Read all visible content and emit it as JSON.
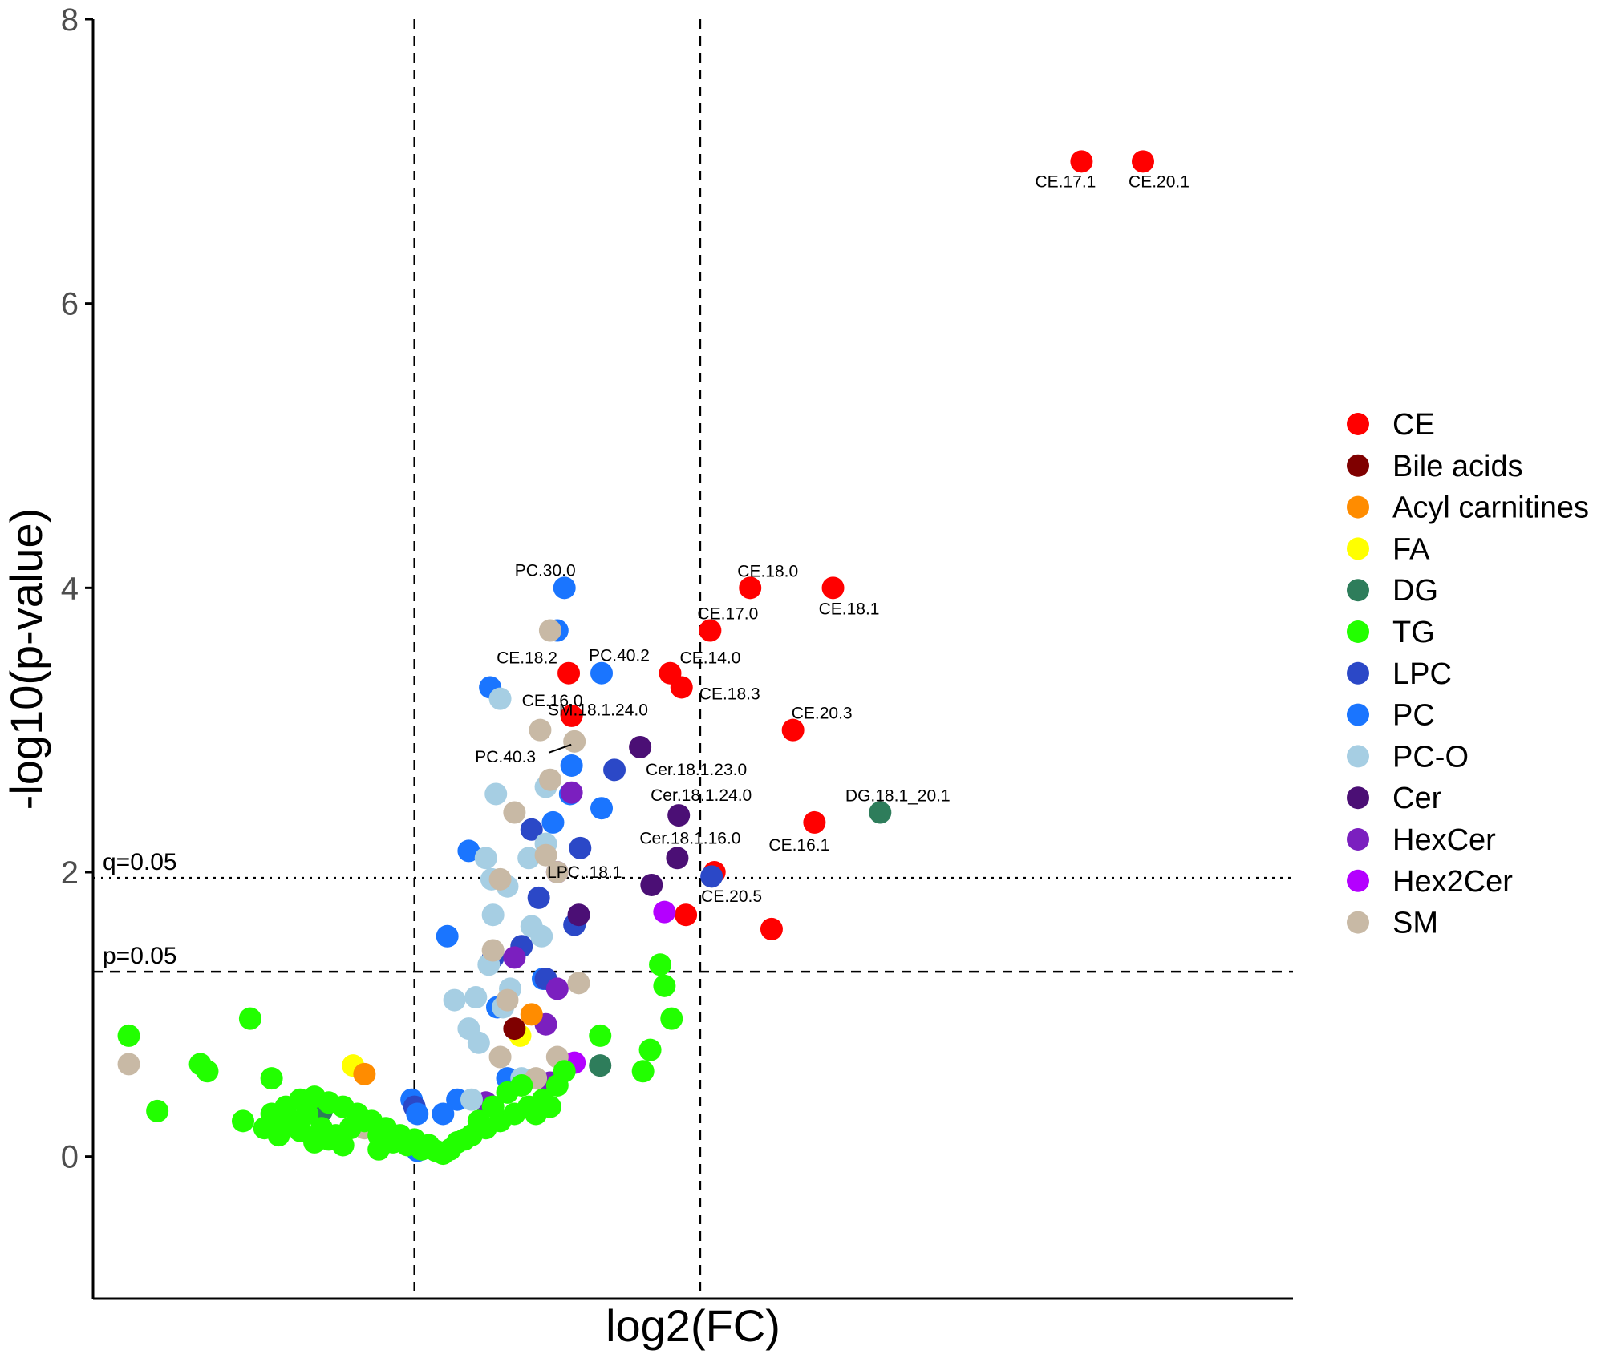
{
  "chart_data": {
    "type": "scatter",
    "xlabel": "log2(FC)",
    "ylabel": "-log10(p-value)",
    "ylim": [
      -1,
      8
    ],
    "y_ticks": [
      0,
      2,
      4,
      6,
      8
    ],
    "x_ticks_shown": false,
    "grid": false,
    "legend_position": "right",
    "vlines": [
      -1,
      1
    ],
    "hlines": [
      {
        "value": 1.3,
        "style": "dashed",
        "label": "p=0.05"
      },
      {
        "value": 1.96,
        "style": "dotted",
        "label": "q=0.05"
      }
    ],
    "categories": [
      {
        "name": "CE",
        "color": "#ff0000"
      },
      {
        "name": "Bile acids",
        "color": "#7f0000"
      },
      {
        "name": "Acyl carnitines",
        "color": "#ff8c00"
      },
      {
        "name": "FA",
        "color": "#ffff00"
      },
      {
        "name": "DG",
        "color": "#2e7d5b"
      },
      {
        "name": "TG",
        "color": "#22ff00"
      },
      {
        "name": "LPC",
        "color": "#2b48c7"
      },
      {
        "name": "PC",
        "color": "#1a75ff"
      },
      {
        "name": "PC-O",
        "color": "#a6cee3"
      },
      {
        "name": "Cer",
        "color": "#4b0f75"
      },
      {
        "name": "HexCer",
        "color": "#7b1fbf"
      },
      {
        "name": "Hex2Cer",
        "color": "#b400ff"
      },
      {
        "name": "SM",
        "color": "#c8b9a5"
      }
    ],
    "points": [
      {
        "x": 3.67,
        "y": 7.0,
        "c": 0,
        "label": "CE.17.1"
      },
      {
        "x": 4.1,
        "y": 7.0,
        "c": 0,
        "label": "CE.20.1"
      },
      {
        "x": 1.35,
        "y": 4.0,
        "c": 0,
        "label": "CE.18.0"
      },
      {
        "x": 1.93,
        "y": 4.0,
        "c": 0,
        "label": "CE.18.1"
      },
      {
        "x": 1.07,
        "y": 3.7,
        "c": 0,
        "label": "CE.17.0"
      },
      {
        "x": 0.08,
        "y": 3.4,
        "c": 0,
        "label": "CE.18.2"
      },
      {
        "x": 0.79,
        "y": 3.4,
        "c": 0,
        "label": "CE.14.0"
      },
      {
        "x": 0.87,
        "y": 3.3,
        "c": 0,
        "label": "CE.18.3"
      },
      {
        "x": 0.1,
        "y": 3.1,
        "c": 0,
        "label": "CE.16.0"
      },
      {
        "x": 1.65,
        "y": 3.0,
        "c": 0,
        "label": "CE.20.3"
      },
      {
        "x": 1.8,
        "y": 2.35,
        "c": 0,
        "label": "CE.16.1"
      },
      {
        "x": 1.1,
        "y": 2.0,
        "c": 0
      },
      {
        "x": 0.9,
        "y": 1.7,
        "c": 0,
        "label": "CE.20.5"
      },
      {
        "x": 1.5,
        "y": 1.6,
        "c": 0
      },
      {
        "x": 2.26,
        "y": 2.42,
        "c": 4,
        "label": "DG.18.1_20.1"
      },
      {
        "x": 0.05,
        "y": 4.0,
        "c": 7,
        "label": "PC.30.0"
      },
      {
        "x": 0.31,
        "y": 3.4,
        "c": 7,
        "label": "PC.40.2"
      },
      {
        "x": 0.0,
        "y": 3.7,
        "c": 7
      },
      {
        "x": -0.47,
        "y": 3.3,
        "c": 7
      },
      {
        "x": 0.1,
        "y": 2.75,
        "c": 7
      },
      {
        "x": 0.31,
        "y": 2.45,
        "c": 7
      },
      {
        "x": -0.62,
        "y": 2.15,
        "c": 7
      },
      {
        "x": -0.77,
        "y": 1.55,
        "c": 7
      },
      {
        "x": -0.03,
        "y": 2.35,
        "c": 7
      },
      {
        "x": 0.09,
        "y": 2.55,
        "c": 7
      },
      {
        "x": -0.1,
        "y": 1.25,
        "c": 7
      },
      {
        "x": -0.42,
        "y": 1.05,
        "c": 7
      },
      {
        "x": -0.35,
        "y": 0.55,
        "c": 7
      },
      {
        "x": -0.7,
        "y": 0.4,
        "c": 7
      },
      {
        "x": -0.8,
        "y": 0.3,
        "c": 7
      },
      {
        "x": -1.02,
        "y": 0.4,
        "c": 7
      },
      {
        "x": -1.0,
        "y": 0.35,
        "c": 6
      },
      {
        "x": -0.98,
        "y": 0.3,
        "c": 7
      },
      {
        "x": -0.98,
        "y": 0.04,
        "c": 7
      },
      {
        "x": -1.0,
        "y": 0.07,
        "c": 7
      },
      {
        "x": -0.95,
        "y": 0.05,
        "c": 7
      },
      {
        "x": 0.4,
        "y": 2.72,
        "c": 6
      },
      {
        "x": 0.16,
        "y": 2.17,
        "c": 6
      },
      {
        "x": 1.08,
        "y": 1.97,
        "c": 6
      },
      {
        "x": -0.18,
        "y": 2.3,
        "c": 6
      },
      {
        "x": -0.13,
        "y": 1.82,
        "c": 6
      },
      {
        "x": 0.12,
        "y": 1.63,
        "c": 6
      },
      {
        "x": -0.08,
        "y": 1.25,
        "c": 6
      },
      {
        "x": -0.45,
        "y": 1.4,
        "c": 6
      },
      {
        "x": -0.25,
        "y": 1.48,
        "c": 6
      },
      {
        "x": 0.58,
        "y": 2.88,
        "c": 9,
        "label": "Cer.18.1.23.0"
      },
      {
        "x": 0.85,
        "y": 2.4,
        "c": 9,
        "label": "Cer.18.1.24.0"
      },
      {
        "x": 0.84,
        "y": 2.1,
        "c": 9,
        "label": "Cer.18.1.16.0"
      },
      {
        "x": 0.66,
        "y": 1.91,
        "c": 9
      },
      {
        "x": 0.15,
        "y": 1.7,
        "c": 9
      },
      {
        "x": 0.0,
        "y": 2.0,
        "c": 10,
        "label": "LPC..18.1"
      },
      {
        "x": 0.1,
        "y": 2.56,
        "c": 10
      },
      {
        "x": -0.3,
        "y": 1.4,
        "c": 10
      },
      {
        "x": 0.0,
        "y": 1.18,
        "c": 10
      },
      {
        "x": -0.08,
        "y": 0.93,
        "c": 10
      },
      {
        "x": -0.5,
        "y": 0.38,
        "c": 10
      },
      {
        "x": -0.05,
        "y": 0.52,
        "c": 10
      },
      {
        "x": 0.75,
        "y": 1.72,
        "c": 11
      },
      {
        "x": 0.12,
        "y": 0.66,
        "c": 11
      },
      {
        "x": 0.3,
        "y": 0.64,
        "c": 4
      },
      {
        "x": -1.65,
        "y": 0.32,
        "c": 4
      },
      {
        "x": -1.43,
        "y": 0.64,
        "c": 3
      },
      {
        "x": -0.26,
        "y": 0.85,
        "c": 3
      },
      {
        "x": -1.35,
        "y": 0.58,
        "c": 2
      },
      {
        "x": -0.18,
        "y": 1.0,
        "c": 2
      },
      {
        "x": -0.3,
        "y": 0.9,
        "c": 1
      },
      {
        "x": -0.08,
        "y": 2.6,
        "c": 8
      },
      {
        "x": -0.4,
        "y": 3.22,
        "c": 8
      },
      {
        "x": -0.08,
        "y": 2.2,
        "c": 8
      },
      {
        "x": -0.11,
        "y": 1.55,
        "c": 8
      },
      {
        "x": -0.46,
        "y": 1.95,
        "c": 8
      },
      {
        "x": -0.45,
        "y": 1.7,
        "c": 8
      },
      {
        "x": -0.48,
        "y": 1.35,
        "c": 8
      },
      {
        "x": -0.57,
        "y": 1.12,
        "c": 8
      },
      {
        "x": -0.62,
        "y": 0.9,
        "c": 8
      },
      {
        "x": -0.55,
        "y": 0.8,
        "c": 8
      },
      {
        "x": -0.33,
        "y": 1.18,
        "c": 8
      },
      {
        "x": -0.35,
        "y": 1.9,
        "c": 8
      },
      {
        "x": -0.2,
        "y": 2.1,
        "c": 8
      },
      {
        "x": -0.43,
        "y": 2.55,
        "c": 8
      },
      {
        "x": -0.5,
        "y": 2.1,
        "c": 8
      },
      {
        "x": -0.18,
        "y": 1.62,
        "c": 8
      },
      {
        "x": -0.25,
        "y": 0.55,
        "c": 8
      },
      {
        "x": -0.6,
        "y": 0.4,
        "c": 8
      },
      {
        "x": -0.72,
        "y": 1.1,
        "c": 8
      },
      {
        "x": -0.38,
        "y": 1.05,
        "c": 8
      },
      {
        "x": 0.0,
        "y": 2.0,
        "c": 12
      },
      {
        "x": -0.05,
        "y": 3.7,
        "c": 12
      },
      {
        "x": -0.12,
        "y": 3.0,
        "c": 12,
        "label": "SM.18.1.24.0"
      },
      {
        "x": 0.12,
        "y": 2.92,
        "c": 12,
        "label": "PC.40.3"
      },
      {
        "x": -0.05,
        "y": 2.65,
        "c": 12
      },
      {
        "x": -0.3,
        "y": 2.42,
        "c": 12
      },
      {
        "x": -0.08,
        "y": 2.12,
        "c": 12
      },
      {
        "x": -0.4,
        "y": 1.95,
        "c": 12
      },
      {
        "x": -0.45,
        "y": 1.45,
        "c": 12
      },
      {
        "x": -0.35,
        "y": 1.1,
        "c": 12
      },
      {
        "x": 0.15,
        "y": 1.22,
        "c": 12
      },
      {
        "x": -0.4,
        "y": 0.7,
        "c": 12
      },
      {
        "x": -0.15,
        "y": 0.55,
        "c": 12
      },
      {
        "x": 0.0,
        "y": 0.7,
        "c": 12
      },
      {
        "x": -3.0,
        "y": 0.65,
        "c": 12
      },
      {
        "x": -1.35,
        "y": 0.2,
        "c": 12
      },
      {
        "x": -3.0,
        "y": 0.85,
        "c": 5
      },
      {
        "x": -2.15,
        "y": 0.97,
        "c": 5
      },
      {
        "x": -2.5,
        "y": 0.65,
        "c": 5
      },
      {
        "x": -2.45,
        "y": 0.6,
        "c": 5
      },
      {
        "x": -2.8,
        "y": 0.32,
        "c": 5
      },
      {
        "x": -2.2,
        "y": 0.25,
        "c": 5
      },
      {
        "x": -2.0,
        "y": 0.3,
        "c": 5
      },
      {
        "x": -1.9,
        "y": 0.35,
        "c": 5
      },
      {
        "x": -1.8,
        "y": 0.4,
        "c": 5
      },
      {
        "x": -1.7,
        "y": 0.42,
        "c": 5
      },
      {
        "x": -1.6,
        "y": 0.38,
        "c": 5
      },
      {
        "x": -1.5,
        "y": 0.35,
        "c": 5
      },
      {
        "x": -1.4,
        "y": 0.3,
        "c": 5
      },
      {
        "x": -1.3,
        "y": 0.25,
        "c": 5
      },
      {
        "x": -1.2,
        "y": 0.2,
        "c": 5
      },
      {
        "x": -1.1,
        "y": 0.15,
        "c": 5
      },
      {
        "x": -1.0,
        "y": 0.12,
        "c": 5
      },
      {
        "x": -0.9,
        "y": 0.08,
        "c": 5
      },
      {
        "x": -0.85,
        "y": 0.04,
        "c": 5
      },
      {
        "x": -0.8,
        "y": 0.02,
        "c": 5
      },
      {
        "x": -0.75,
        "y": 0.05,
        "c": 5
      },
      {
        "x": -0.7,
        "y": 0.1,
        "c": 5
      },
      {
        "x": -0.6,
        "y": 0.15,
        "c": 5
      },
      {
        "x": -0.5,
        "y": 0.2,
        "c": 5
      },
      {
        "x": -0.4,
        "y": 0.25,
        "c": 5
      },
      {
        "x": -0.3,
        "y": 0.3,
        "c": 5
      },
      {
        "x": -0.2,
        "y": 0.35,
        "c": 5
      },
      {
        "x": -0.1,
        "y": 0.4,
        "c": 5
      },
      {
        "x": 0.0,
        "y": 0.5,
        "c": 5
      },
      {
        "x": -2.05,
        "y": 0.2,
        "c": 5
      },
      {
        "x": -1.95,
        "y": 0.15,
        "c": 5
      },
      {
        "x": -1.85,
        "y": 0.25,
        "c": 5
      },
      {
        "x": -1.75,
        "y": 0.3,
        "c": 5
      },
      {
        "x": -1.65,
        "y": 0.2,
        "c": 5
      },
      {
        "x": -1.55,
        "y": 0.15,
        "c": 5
      },
      {
        "x": -1.45,
        "y": 0.2,
        "c": 5
      },
      {
        "x": -1.35,
        "y": 0.25,
        "c": 5
      },
      {
        "x": -1.25,
        "y": 0.15,
        "c": 5
      },
      {
        "x": -1.15,
        "y": 0.1,
        "c": 5
      },
      {
        "x": -1.05,
        "y": 0.08,
        "c": 5
      },
      {
        "x": -0.95,
        "y": 0.05,
        "c": 5
      },
      {
        "x": -0.65,
        "y": 0.12,
        "c": 5
      },
      {
        "x": -0.55,
        "y": 0.25,
        "c": 5
      },
      {
        "x": -0.45,
        "y": 0.35,
        "c": 5
      },
      {
        "x": -0.35,
        "y": 0.45,
        "c": 5
      },
      {
        "x": -0.25,
        "y": 0.5,
        "c": 5
      },
      {
        "x": -0.15,
        "y": 0.3,
        "c": 5
      },
      {
        "x": -0.05,
        "y": 0.35,
        "c": 5
      },
      {
        "x": 0.05,
        "y": 0.6,
        "c": 5
      },
      {
        "x": -1.7,
        "y": 0.1,
        "c": 5
      },
      {
        "x": -1.6,
        "y": 0.12,
        "c": 5
      },
      {
        "x": -1.8,
        "y": 0.18,
        "c": 5
      },
      {
        "x": -1.9,
        "y": 0.22,
        "c": 5
      },
      {
        "x": -1.5,
        "y": 0.08,
        "c": 5
      },
      {
        "x": -1.25,
        "y": 0.05,
        "c": 5
      },
      {
        "x": -2.0,
        "y": 0.55,
        "c": 5
      },
      {
        "x": 0.3,
        "y": 0.85,
        "c": 5
      },
      {
        "x": 0.65,
        "y": 0.75,
        "c": 5
      },
      {
        "x": 0.6,
        "y": 0.6,
        "c": 5
      },
      {
        "x": 0.75,
        "y": 1.2,
        "c": 5
      },
      {
        "x": 0.72,
        "y": 1.35,
        "c": 5
      },
      {
        "x": 0.8,
        "y": 0.97,
        "c": 5
      }
    ]
  }
}
